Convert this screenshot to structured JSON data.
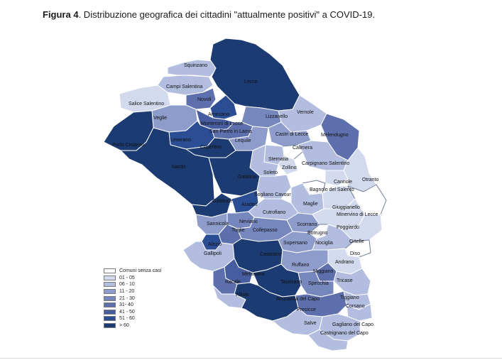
{
  "caption": {
    "figure_label": "Figura 4",
    "text": ". Distribuzione  geografica dei cittadini \"attualmente positivi\" a COVID-19."
  },
  "legend": {
    "items": [
      {
        "label": "Comuni senza casi",
        "color": "#ffffff"
      },
      {
        "label": "01 - 05",
        "color": "#d3daee"
      },
      {
        "label": "06 - 10",
        "color": "#b2bddf"
      },
      {
        "label": "11 - 20",
        "color": "#8e9ccb"
      },
      {
        "label": "21 - 30",
        "color": "#7687be"
      },
      {
        "label": "31- 40",
        "color": "#5d70ad"
      },
      {
        "label": "41 - 50",
        "color": "#465d9f"
      },
      {
        "label": "51 - 60",
        "color": "#2b4d93"
      },
      {
        "label": "> 60",
        "color": "#1c3b72"
      }
    ]
  },
  "map_labels": [
    "Squinzano",
    "Lecce",
    "Campi Salentina",
    "Salice Salentino",
    "Novoli",
    "Arnesano",
    "Veglie",
    "Monteroni di Lecce",
    "Lizzanello",
    "Vernole",
    "San Pietro in Lama",
    "Leverano",
    "Lequile",
    "Castri di Lecce",
    "Melendugno",
    "Porto Cesareo",
    "Copertino",
    "Calimera",
    "Sternatia",
    "Nardò",
    "Carpignano Salentino",
    "Zollino",
    "Soleto",
    "Galatina",
    "Cannole",
    "Otranto",
    "Bagnolo del Salento",
    "Sogliano Cavour",
    "Galatone",
    "Aradeo",
    "Maglie",
    "Giuggianello",
    "Cutrofiano",
    "Minervino di Lecce",
    "Neviano",
    "Sannicola",
    "Scorrano",
    "Poggiardo",
    "Tuglie",
    "Collepasso",
    "Botrugno",
    "Alezio",
    "Ortelle",
    "Supersano",
    "Nociglia",
    "Gallipoli",
    "Casarano",
    "Diso",
    "Andrano",
    "Ruffano",
    "Miggiano",
    "Melissano",
    "Tricase",
    "Taurisano",
    "Specchia",
    "Racale",
    "Alliste",
    "Tiggiano",
    "Acquarica del Capo",
    "Corsano",
    "Presicce",
    "Salve",
    "Gagliano del Capo",
    "Castrignano del Capo"
  ],
  "colors": {
    "border": "#ffffff",
    "outline": "#6f7a96",
    "label_text": "#111111",
    "rule": "#d9d9d9"
  }
}
